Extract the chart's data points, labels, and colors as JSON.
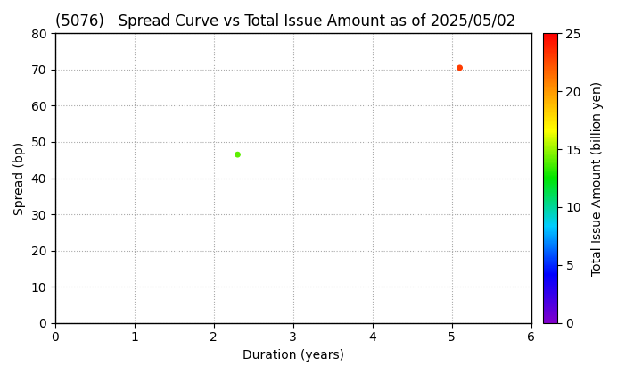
{
  "title": "(5076)   Spread Curve vs Total Issue Amount as of 2025/05/02",
  "xlabel": "Duration (years)",
  "ylabel": "Spread (bp)",
  "colorbar_label": "Total Issue Amount (billion yen)",
  "xlim": [
    0,
    6
  ],
  "ylim": [
    0,
    80
  ],
  "xticks": [
    0,
    1,
    2,
    3,
    4,
    5,
    6
  ],
  "yticks": [
    0,
    10,
    20,
    30,
    40,
    50,
    60,
    70,
    80
  ],
  "colorbar_ticks": [
    0,
    5,
    10,
    15,
    20,
    25
  ],
  "colorbar_vmin": 0,
  "colorbar_vmax": 25,
  "points": [
    {
      "duration": 2.3,
      "spread": 46.5,
      "amount": 14
    },
    {
      "duration": 5.1,
      "spread": 70.5,
      "amount": 23
    }
  ],
  "marker_size": 15,
  "background_color": "#ffffff",
  "grid_color": "#aaaaaa",
  "grid_style": "dotted",
  "title_fontsize": 12,
  "axis_label_fontsize": 10,
  "tick_fontsize": 10
}
